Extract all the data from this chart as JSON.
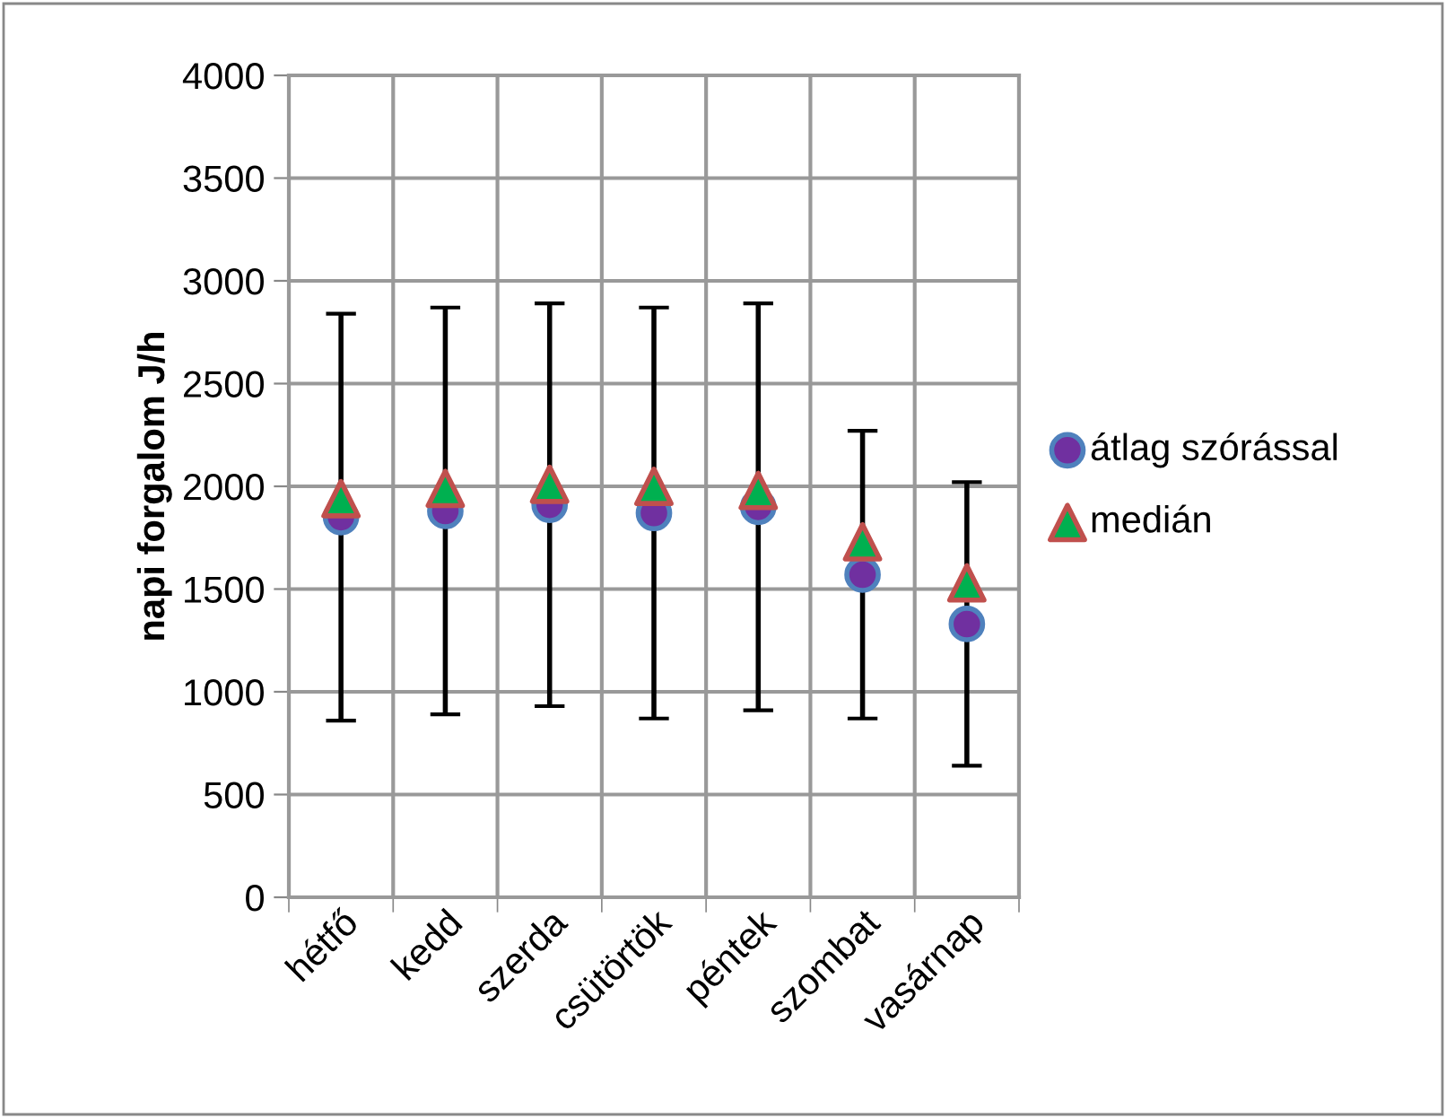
{
  "chart_data": {
    "type": "scatter",
    "ylabel": "napi forgalom J/h",
    "categories": [
      "hétfő",
      "kedd",
      "szerda",
      "csütörtök",
      "péntek",
      "szombat",
      "vasárnap"
    ],
    "series": [
      {
        "name": "átlag szórással",
        "color": "#7030a0",
        "marker": "circle",
        "values": [
          1850,
          1880,
          1910,
          1870,
          1900,
          1570,
          1330
        ],
        "errors": [
          990,
          990,
          980,
          1000,
          990,
          700,
          690
        ]
      },
      {
        "name": "medián",
        "color": "#00b050",
        "marker": "triangle",
        "values": [
          1940,
          1990,
          2010,
          2000,
          1980,
          1730,
          1530
        ]
      }
    ],
    "ylim": [
      0,
      4000
    ],
    "yticks": [
      0,
      500,
      1000,
      1500,
      2000,
      2500,
      3000,
      3500,
      4000
    ],
    "grid": true,
    "legend": "right"
  }
}
